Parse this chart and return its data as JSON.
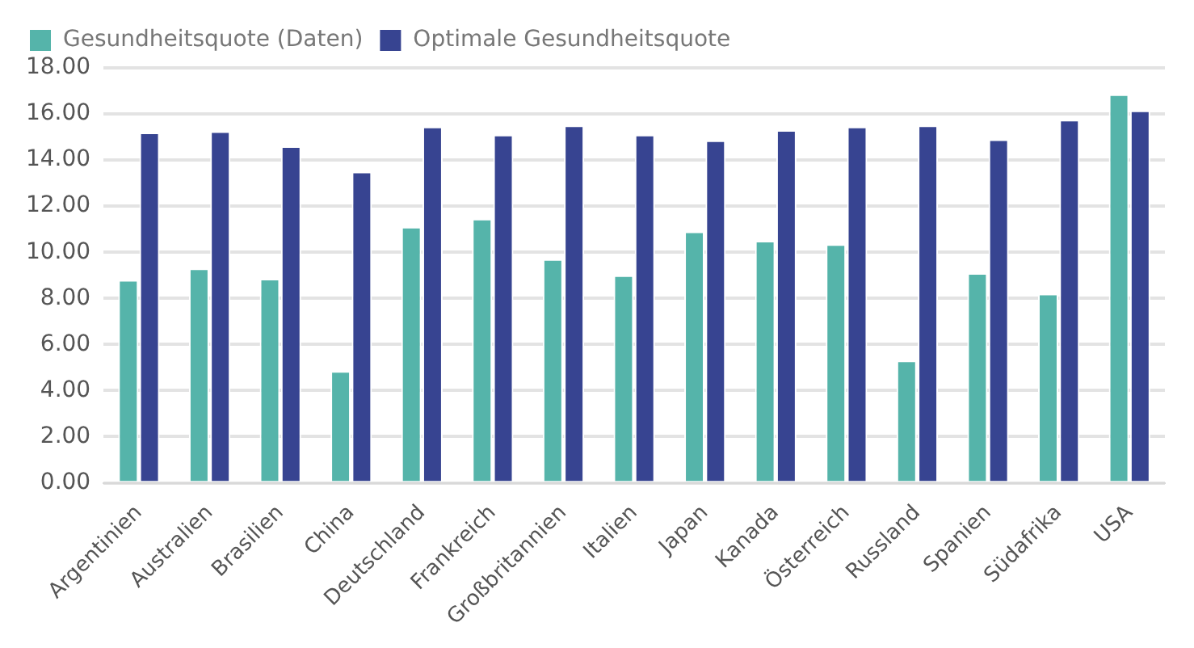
{
  "chart_data": {
    "type": "bar",
    "categories": [
      "Argentinien",
      "Australien",
      "Brasilien",
      "China",
      "Deutschland",
      "Frankreich",
      "Großbritannien",
      "Italien",
      "Japan",
      "Kanada",
      "Österreich",
      "Russland",
      "Spanien",
      "Südafrika",
      "USA"
    ],
    "series": [
      {
        "name": "Gesundheitsquote (Daten)",
        "color": "#55b4aa",
        "values": [
          8.8,
          9.3,
          8.85,
          4.85,
          11.1,
          11.45,
          9.7,
          9.0,
          10.9,
          10.5,
          10.35,
          5.3,
          9.1,
          8.2,
          16.85
        ]
      },
      {
        "name": "Optimale Gesundheitsquote",
        "color": "#374491",
        "values": [
          15.2,
          15.25,
          14.6,
          13.5,
          15.45,
          15.1,
          15.5,
          15.1,
          14.85,
          15.3,
          15.45,
          15.5,
          14.9,
          15.75,
          16.15
        ]
      }
    ],
    "ylim": [
      0,
      18
    ],
    "yticks": [
      {
        "value": 0,
        "label": "0.00"
      },
      {
        "value": 2,
        "label": "2.00"
      },
      {
        "value": 4,
        "label": "4.00"
      },
      {
        "value": 6,
        "label": "6.00"
      },
      {
        "value": 8,
        "label": "8.00"
      },
      {
        "value": 10,
        "label": "10.00"
      },
      {
        "value": 12,
        "label": "12.00"
      },
      {
        "value": 14,
        "label": "14.00"
      },
      {
        "value": 16,
        "label": "16.00"
      },
      {
        "value": 18,
        "label": "18.00"
      }
    ],
    "grid": "y",
    "legend": "top left"
  }
}
